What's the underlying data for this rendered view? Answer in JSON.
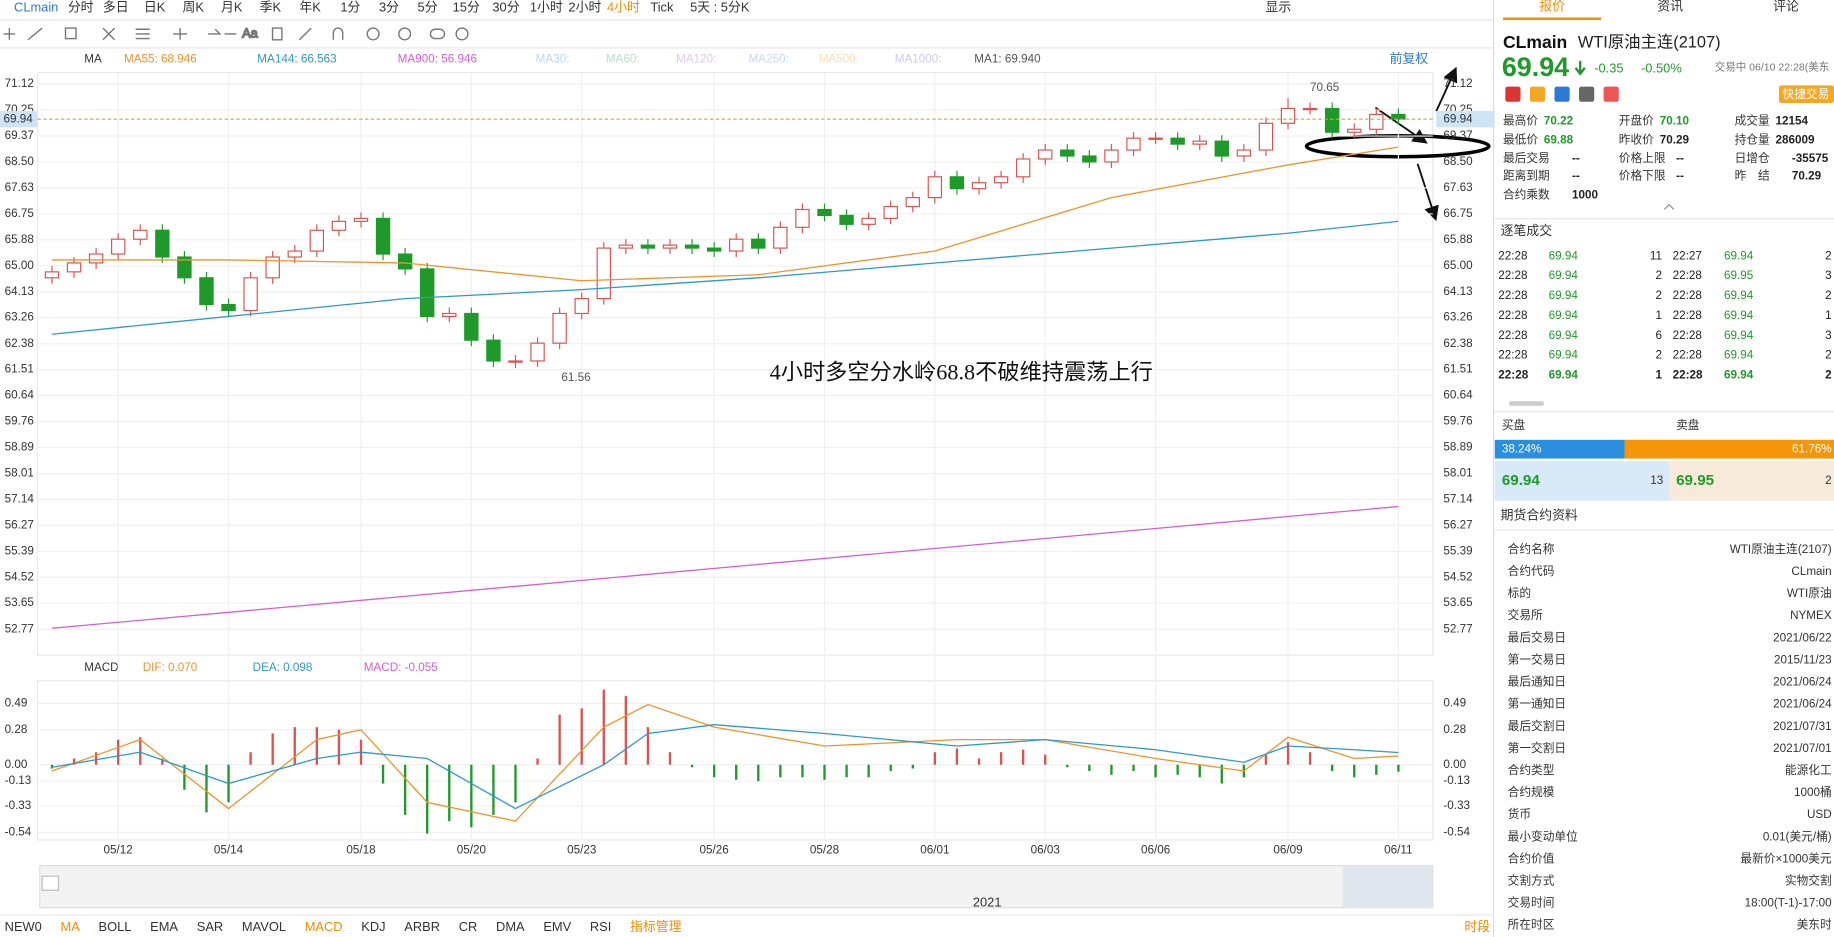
{
  "toolbar": {
    "items": [
      {
        "text": "CLmain",
        "color": "#2b7bd6"
      },
      "分时",
      "多日",
      "日K",
      "周K",
      "月K",
      "季K",
      "年K",
      "1分",
      "3分",
      "5分",
      "15分",
      "30分",
      "1小时",
      "2小时",
      {
        "text": "4小时",
        "color": "#f08c00"
      },
      "Tick",
      "5天 : 5分K"
    ],
    "display": "显示"
  },
  "indicators": {
    "main": [
      {
        "text": "MA",
        "color": "#333333"
      },
      {
        "text": "MA55: 68.946",
        "color": "#f0932b"
      },
      {
        "text": "MA144: 66.563",
        "color": "#2d9ac8"
      },
      {
        "text": "MA900: 56.946",
        "color": "#d45fd4"
      },
      {
        "text": "MA30:",
        "color": "#b8d8f0"
      },
      {
        "text": "MA60:",
        "color": "#b8e0c8"
      },
      {
        "text": "MA120:",
        "color": "#e8c8e8"
      },
      {
        "text": "MA250:",
        "color": "#c8d8f8"
      },
      {
        "text": "MA500:",
        "color": "#f8e0b0"
      },
      {
        "text": "MA1000:",
        "color": "#d0c8f0"
      },
      {
        "text": "MA1: 69.940",
        "color": "#555555"
      }
    ],
    "adjust": "前复权",
    "macd": [
      {
        "text": "MACD",
        "color": "#333333"
      },
      {
        "text": "DIF: 0.070",
        "color": "#f0932b"
      },
      {
        "text": "DEA: 0.098",
        "color": "#2d9ac8"
      },
      {
        "text": "MACD: -0.055",
        "color": "#d45fd4"
      }
    ]
  },
  "chart_data": [
    {
      "type": "candlestick",
      "up_color": "#d9534f",
      "down_color": "#1f9a2a",
      "categories": [
        null,
        null,
        null,
        "05/12",
        null,
        null,
        null,
        null,
        "05/14",
        null,
        null,
        null,
        null,
        null,
        "05/18",
        null,
        null,
        null,
        null,
        "05/20",
        null,
        null,
        null,
        null,
        "05/23",
        null,
        null,
        null,
        null,
        null,
        "05/26",
        null,
        null,
        null,
        null,
        "05/28",
        null,
        null,
        null,
        null,
        "06/01",
        null,
        null,
        null,
        null,
        "06/03",
        null,
        null,
        null,
        null,
        "06/06",
        null,
        null,
        null,
        null,
        null,
        "06/09",
        null,
        null,
        null,
        null,
        "06/11"
      ],
      "open": [
        64.6,
        64.8,
        65.1,
        65.4,
        65.9,
        66.2,
        65.3,
        64.6,
        63.7,
        63.5,
        64.6,
        65.3,
        65.5,
        66.2,
        66.5,
        66.6,
        65.4,
        64.9,
        63.3,
        63.4,
        62.5,
        61.8,
        61.8,
        62.4,
        63.4,
        63.9,
        65.6,
        65.7,
        65.6,
        65.7,
        65.6,
        65.5,
        65.9,
        65.6,
        66.3,
        66.9,
        66.7,
        66.4,
        66.6,
        67.0,
        67.3,
        68.0,
        67.6,
        67.8,
        68.0,
        68.6,
        68.9,
        68.7,
        68.5,
        68.9,
        69.3,
        69.3,
        69.1,
        69.2,
        68.7,
        68.9,
        69.8,
        70.3,
        70.3,
        69.5,
        69.6,
        70.1
      ],
      "high": [
        65.0,
        65.3,
        65.6,
        66.1,
        66.4,
        66.4,
        65.5,
        64.8,
        63.9,
        64.8,
        65.5,
        65.7,
        66.4,
        66.7,
        66.8,
        66.8,
        65.6,
        65.1,
        63.6,
        63.6,
        62.7,
        62.0,
        62.6,
        63.6,
        64.1,
        65.8,
        65.9,
        65.9,
        65.9,
        65.9,
        65.8,
        66.1,
        66.1,
        66.5,
        67.1,
        67.1,
        66.9,
        66.8,
        67.2,
        67.5,
        68.2,
        68.2,
        68.0,
        68.2,
        68.8,
        69.1,
        69.1,
        68.9,
        69.1,
        69.5,
        69.5,
        69.5,
        69.4,
        69.4,
        69.1,
        70.0,
        70.65,
        70.5,
        70.5,
        69.8,
        70.3,
        70.3
      ],
      "low": [
        64.4,
        64.6,
        64.9,
        65.2,
        65.7,
        65.1,
        64.4,
        63.5,
        63.3,
        63.3,
        64.4,
        65.1,
        65.3,
        66.0,
        66.3,
        65.2,
        64.7,
        63.1,
        63.1,
        62.3,
        61.6,
        61.56,
        61.6,
        62.2,
        63.2,
        63.7,
        65.4,
        65.4,
        65.4,
        65.4,
        65.3,
        65.3,
        65.4,
        65.4,
        66.1,
        66.5,
        66.2,
        66.2,
        66.4,
        66.8,
        67.1,
        67.4,
        67.4,
        67.6,
        67.8,
        68.4,
        68.5,
        68.3,
        68.3,
        68.7,
        69.1,
        68.9,
        68.9,
        68.5,
        68.5,
        68.7,
        69.6,
        70.1,
        69.3,
        69.3,
        69.4,
        69.74
      ],
      "close": [
        64.8,
        65.1,
        65.4,
        65.9,
        66.2,
        65.3,
        64.6,
        63.7,
        63.5,
        64.6,
        65.3,
        65.5,
        66.2,
        66.5,
        66.6,
        65.4,
        64.9,
        63.3,
        63.4,
        62.5,
        61.8,
        61.8,
        62.4,
        63.4,
        63.9,
        65.6,
        65.7,
        65.6,
        65.7,
        65.6,
        65.5,
        65.9,
        65.6,
        66.3,
        66.9,
        66.7,
        66.4,
        66.6,
        67.0,
        67.3,
        68.0,
        67.6,
        67.8,
        68.0,
        68.6,
        68.9,
        68.7,
        68.5,
        68.9,
        69.3,
        69.3,
        69.1,
        69.2,
        68.7,
        68.9,
        69.8,
        70.3,
        70.3,
        69.5,
        69.6,
        70.1,
        69.94
      ],
      "lines": [
        {
          "color": "#f0932b",
          "x": [
            0,
            8,
            16,
            24,
            32,
            40,
            48,
            56,
            61
          ],
          "values": [
            65.2,
            65.2,
            65.1,
            64.5,
            64.7,
            65.5,
            67.3,
            68.4,
            69.0
          ]
        },
        {
          "color": "#2d9ac8",
          "x": [
            0,
            8,
            16,
            24,
            32,
            40,
            48,
            56,
            61
          ],
          "values": [
            62.7,
            63.3,
            63.9,
            64.2,
            64.6,
            65.1,
            65.6,
            66.1,
            66.5
          ]
        },
        {
          "color": "#d45fd4",
          "x": [
            0,
            61
          ],
          "values": [
            52.8,
            56.9
          ]
        }
      ],
      "last_price": 69.94,
      "ylim": [
        51.9,
        71.51
      ],
      "yticks": [
        71.12,
        70.25,
        69.37,
        {
          "value": 68.5,
          "label": "68.50"
        },
        67.63,
        66.75,
        65.88,
        {
          "value": 65,
          "label": "65.00"
        },
        64.13,
        63.26,
        62.38,
        61.51,
        60.64,
        59.76,
        58.89,
        58.01,
        57.14,
        56.27,
        55.39,
        54.52,
        53.65,
        52.77
      ],
      "grid": true,
      "annotations": [
        "70.65",
        "61.56",
        "4小时多空分水岭68.8不破维持震荡上行"
      ]
    },
    {
      "type": "macd",
      "up_color": "#d9534f",
      "down_color": "#1f9a2a",
      "histogram": [
        -0.03,
        0.05,
        0.1,
        0.2,
        0.22,
        0.05,
        -0.2,
        -0.38,
        -0.3,
        0.1,
        0.25,
        0.3,
        0.3,
        0.28,
        0.2,
        -0.15,
        -0.4,
        -0.55,
        -0.45,
        -0.5,
        -0.4,
        -0.3,
        0.05,
        0.4,
        0.45,
        0.6,
        0.55,
        0.3,
        0.1,
        -0.02,
        -0.1,
        -0.12,
        -0.13,
        -0.1,
        -0.1,
        -0.12,
        -0.1,
        -0.1,
        -0.05,
        -0.03,
        0.1,
        0.13,
        0.05,
        0.1,
        0.12,
        0.08,
        -0.02,
        -0.05,
        -0.08,
        -0.05,
        -0.1,
        -0.08,
        -0.1,
        -0.15,
        -0.1,
        0.08,
        0.18,
        0.1,
        -0.05,
        -0.1,
        -0.08,
        -0.055
      ],
      "lines": [
        {
          "color": "#f0932b",
          "x": [
            0,
            4,
            8,
            12,
            14,
            17,
            21,
            25,
            27,
            30,
            35,
            41,
            45,
            50,
            54,
            56,
            59,
            61
          ],
          "values": [
            -0.05,
            0.2,
            -0.35,
            0.2,
            0.28,
            -0.3,
            -0.45,
            0.3,
            0.48,
            0.3,
            0.15,
            0.2,
            0.2,
            0.05,
            -0.05,
            0.22,
            0.05,
            0.07
          ]
        },
        {
          "color": "#2d9ac8",
          "x": [
            0,
            4,
            8,
            12,
            14,
            17,
            21,
            25,
            27,
            30,
            35,
            41,
            45,
            50,
            54,
            56,
            59,
            61
          ],
          "values": [
            -0.02,
            0.1,
            -0.15,
            0.05,
            0.1,
            0.05,
            -0.35,
            0.0,
            0.25,
            0.32,
            0.25,
            0.15,
            0.2,
            0.12,
            0.02,
            0.15,
            0.12,
            0.098
          ]
        }
      ],
      "ylim": [
        -0.6,
        0.67
      ],
      "yticks": [
        0.49,
        0.28,
        {
          "value": 0,
          "label": "0.00"
        },
        -0.13,
        -0.33,
        -0.54
      ],
      "grid": true
    }
  ],
  "scroll_year": "2021",
  "bottom_bar": {
    "items": [
      "NEW0",
      {
        "text": "MA",
        "color": "#f08c00"
      },
      "BOLL",
      "EMA",
      "SAR",
      "MAVOL",
      {
        "text": "MACD",
        "color": "#f08c00"
      },
      "KDJ",
      "ARBR",
      "CR",
      "DMA",
      "EMV",
      "RSI",
      {
        "text": "指标管理",
        "color": "#f08c00"
      }
    ],
    "right": "时段"
  },
  "quote": {
    "tabs": [
      "报价",
      "资讯",
      "评论"
    ],
    "symbol": "CLmain",
    "name": "WTI原油主连(2107)",
    "price": "69.94",
    "change": "-0.35",
    "change_pct": "-0.50%",
    "status": "交易中 06/10 22:28(美东",
    "quick_trade": "快捷交易",
    "stats": [
      [
        [
          "最高价",
          "70.22"
        ],
        [
          "开盘价",
          "70.10"
        ],
        [
          "成交量",
          "12154"
        ]
      ],
      [
        [
          "最低价",
          "69.88"
        ],
        [
          "昨收价",
          "70.29"
        ],
        [
          "持仓量",
          "286009"
        ]
      ],
      [
        [
          "最后交易",
          "--"
        ],
        [
          "价格上限",
          "--"
        ],
        [
          "日增仓",
          "-35575"
        ]
      ],
      [
        [
          "距离到期",
          "--"
        ],
        [
          "价格下限",
          "--"
        ],
        [
          "昨　结",
          "70.29"
        ]
      ],
      [
        [
          "合约乘数",
          "1000"
        ]
      ]
    ]
  },
  "trades": {
    "title": "逐笔成交",
    "rows": [
      [
        "22:28",
        "69.94",
        "11",
        "22:27",
        "69.94",
        "2"
      ],
      [
        "22:28",
        "69.94",
        "2",
        "22:28",
        "69.95",
        "3"
      ],
      [
        "22:28",
        "69.94",
        "2",
        "22:28",
        "69.94",
        "2"
      ],
      [
        "22:28",
        "69.94",
        "1",
        "22:28",
        "69.94",
        "1"
      ],
      [
        "22:28",
        "69.94",
        "6",
        "22:28",
        "69.94",
        "3"
      ],
      [
        "22:28",
        "69.94",
        "2",
        "22:28",
        "69.94",
        "2"
      ],
      [
        "22:28",
        "69.94",
        "1",
        "22:28",
        "69.94",
        "2"
      ]
    ]
  },
  "order_book": {
    "buy": "买盘",
    "sell": "卖盘",
    "ratios": [
      38.24,
      61.76
    ],
    "value_labels": [
      "38.24%",
      "61.76%"
    ],
    "bid": "69.94",
    "bid_size": "13",
    "ask": "69.95",
    "ask_size": "2"
  },
  "contract": {
    "title": "期货合约资料",
    "rows": [
      [
        "合约名称",
        "WTI原油主连(2107)"
      ],
      [
        "合约代码",
        "CLmain"
      ],
      [
        "标的",
        "WTI原油"
      ],
      [
        "交易所",
        "NYMEX"
      ],
      [
        "最后交易日",
        "2021/06/22"
      ],
      [
        "第一交易日",
        "2015/11/23"
      ],
      [
        "最后通知日",
        "2021/06/24"
      ],
      [
        "第一通知日",
        "2021/06/24"
      ],
      [
        "最后交割日",
        "2021/07/31"
      ],
      [
        "第一交割日",
        "2021/07/01"
      ],
      [
        "合约类型",
        "能源化工"
      ],
      [
        "合约规模",
        "1000桶"
      ],
      [
        "货币",
        "USD"
      ],
      [
        "最小变动单位",
        "0.01(美元/桶)"
      ],
      [
        "合约价值",
        "最新价×1000美元"
      ],
      [
        "交割方式",
        "实物交割"
      ],
      [
        "交易时间",
        "18:00(T-1)-17:00"
      ],
      [
        "所在时区",
        "美东时"
      ]
    ]
  }
}
